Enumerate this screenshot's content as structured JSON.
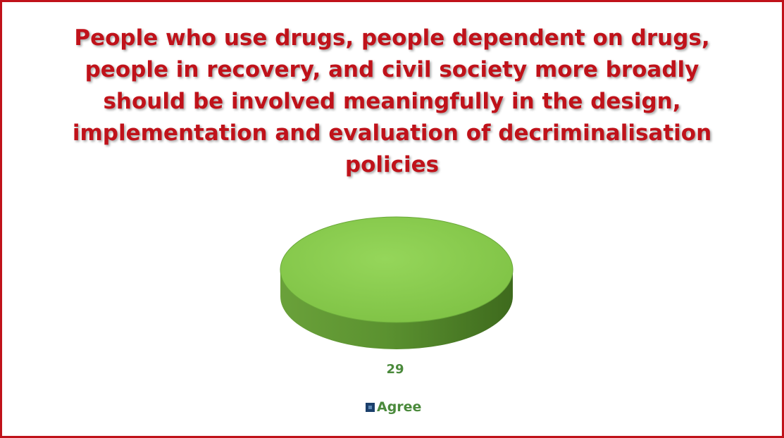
{
  "chart_data": {
    "type": "pie",
    "title": "People who use drugs, people dependent on drugs, people in recovery, and civil society more broadly should be involved meaningfully in the design, implementation and evaluation of decriminalisation policies",
    "categories": [
      "Agree"
    ],
    "values": [
      29
    ],
    "data_labels": [
      "29"
    ],
    "legend": {
      "entries": [
        "Agree"
      ],
      "placement": "bottom"
    },
    "colors": {
      "Agree": "#8ccd4f",
      "title": "#c0121a",
      "frame": "#c0121a",
      "label": "#4b8a3c"
    },
    "style": "3d"
  }
}
